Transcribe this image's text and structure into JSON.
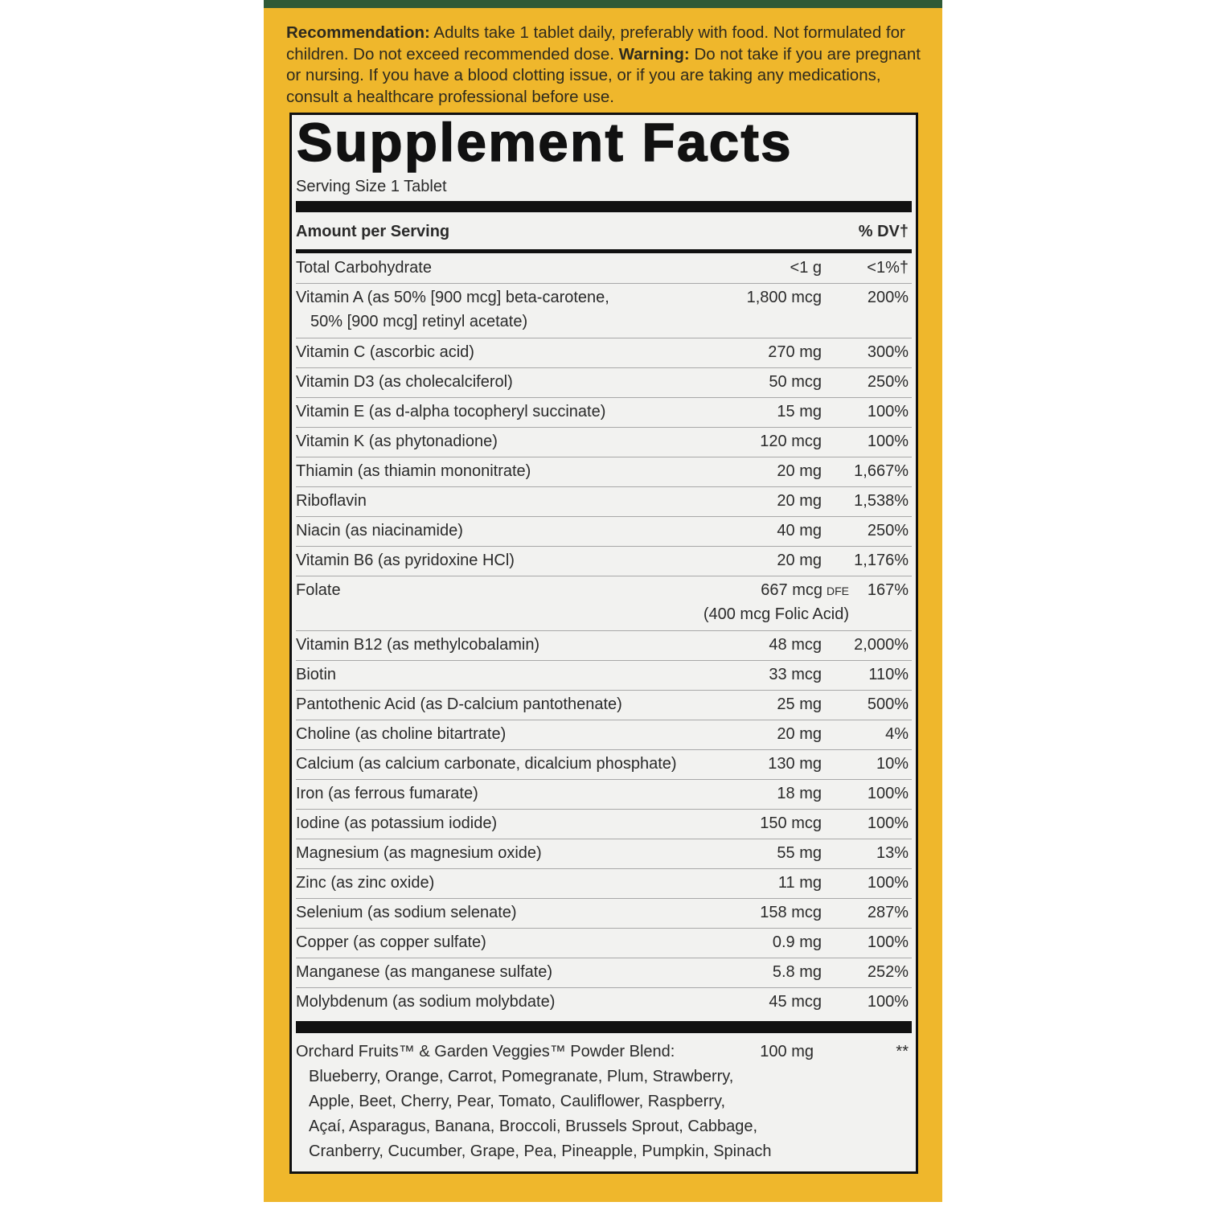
{
  "recommendation": {
    "label": "Recommendation:",
    "text": "Adults take 1 tablet daily, preferably with food. Not formulated for children. Do not exceed recommended dose.",
    "warning_label": "Warning:",
    "warning_text": "Do not take if you are pregnant or nursing. If you have a blood clotting issue, or if you are taking any medications, consult a healthcare professional before use."
  },
  "facts": {
    "title": "Supplement Facts",
    "serving_size": "Serving Size 1 Tablet",
    "header": {
      "amount": "Amount per Serving",
      "dv": "% DV†"
    },
    "rows": [
      {
        "name": "Total Carbohydrate",
        "amount": "<1 g",
        "dv": "<1%†"
      },
      {
        "name": "Vitamin A (as 50% [900 mcg] beta-carotene,",
        "name2": "50% [900 mcg] retinyl acetate)",
        "amount": "1,800 mcg",
        "dv": "200%"
      },
      {
        "name": "Vitamin C (ascorbic acid)",
        "amount": "270 mg",
        "dv": "300%"
      },
      {
        "name": "Vitamin D3 (as cholecalciferol)",
        "amount": "50 mcg",
        "dv": "250%"
      },
      {
        "name": "Vitamin E (as d-alpha tocopheryl succinate)",
        "amount": "15 mg",
        "dv": "100%"
      },
      {
        "name": "Vitamin K (as phytonadione)",
        "amount": "120 mcg",
        "dv": "100%"
      },
      {
        "name": "Thiamin (as thiamin mononitrate)",
        "amount": "20 mg",
        "dv": "1,667%"
      },
      {
        "name": "Riboflavin",
        "amount": "20 mg",
        "dv": "1,538%"
      },
      {
        "name": "Niacin (as niacinamide)",
        "amount": "40 mg",
        "dv": "250%"
      },
      {
        "name": "Vitamin B6 (as pyridoxine HCl)",
        "amount": "20 mg",
        "dv": "1,176%"
      },
      {
        "name": "Folate",
        "amount": "667 mcg",
        "amount_unit": "DFE",
        "amount2": "(400 mcg Folic Acid)",
        "dv": "167%"
      },
      {
        "name": "Vitamin B12 (as methylcobalamin)",
        "amount": "48 mcg",
        "dv": "2,000%"
      },
      {
        "name": "Biotin",
        "amount": "33 mcg",
        "dv": "110%"
      },
      {
        "name": "Pantothenic Acid (as D-calcium pantothenate)",
        "amount": "25 mg",
        "dv": "500%"
      },
      {
        "name": "Choline (as choline bitartrate)",
        "amount": "20 mg",
        "dv": "4%"
      },
      {
        "name": "Calcium (as calcium carbonate, dicalcium phosphate)",
        "amount": "130 mg",
        "dv": "10%"
      },
      {
        "name": "Iron (as ferrous fumarate)",
        "amount": "18 mg",
        "dv": "100%"
      },
      {
        "name": "Iodine (as potassium iodide)",
        "amount": "150 mcg",
        "dv": "100%"
      },
      {
        "name": "Magnesium (as magnesium oxide)",
        "amount": "55 mg",
        "dv": "13%"
      },
      {
        "name": "Zinc (as zinc oxide)",
        "amount": "11 mg",
        "dv": "100%"
      },
      {
        "name": "Selenium (as sodium selenate)",
        "amount": "158 mcg",
        "dv": "287%"
      },
      {
        "name": "Copper (as copper sulfate)",
        "amount": "0.9 mg",
        "dv": "100%"
      },
      {
        "name": "Manganese (as manganese sulfate)",
        "amount": "5.8 mg",
        "dv": "252%"
      },
      {
        "name": "Molybdenum (as sodium molybdate)",
        "amount": "45 mcg",
        "dv": "100%"
      }
    ],
    "blend": {
      "name": "Orchard Fruits™ & Garden Veggies™ Powder Blend:",
      "amount": "100 mg",
      "dv": "**",
      "ingredients": [
        "Blueberry, Orange, Carrot, Pomegranate, Plum, Strawberry,",
        "Apple, Beet, Cherry, Pear, Tomato, Cauliflower, Raspberry,",
        "Açaí, Asparagus, Banana, Broccoli, Brussels Sprout, Cabbage,",
        "Cranberry, Cucumber, Grape, Pea, Pineapple, Pumpkin, Spinach"
      ]
    }
  }
}
